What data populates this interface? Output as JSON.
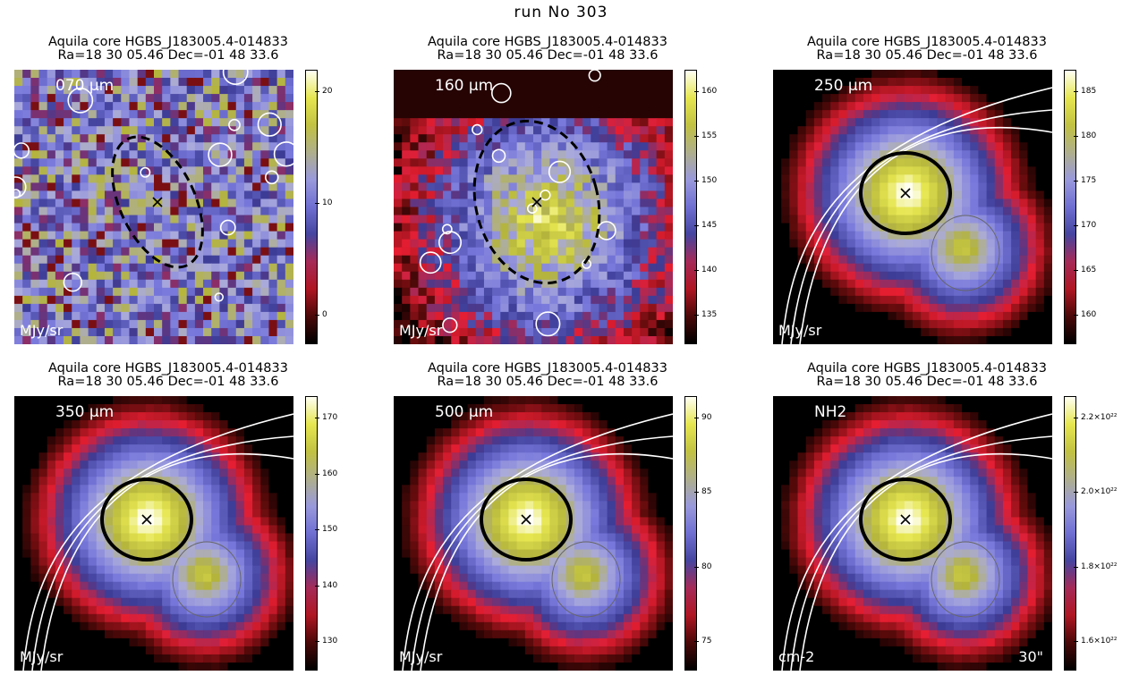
{
  "figure_title": "run No 303",
  "panels": [
    {
      "title_line1": "Aquila core HGBS_J183005.4-014833",
      "title_line2": "Ra=18 30 05.46 Dec=-01 48 33.6",
      "band": "070 μm",
      "unit": "MJy/sr",
      "beam": "",
      "colorbar_ticks": [
        "20",
        "10",
        "0"
      ],
      "style": "noise-ellipse"
    },
    {
      "title_line1": "Aquila core HGBS_J183005.4-014833",
      "title_line2": "Ra=18 30 05.46 Dec=-01 48 33.6",
      "band": "160 μm",
      "unit": "MJy/sr",
      "beam": "",
      "colorbar_ticks": [
        "160",
        "155",
        "150",
        "145",
        "140",
        "135"
      ],
      "style": "patchy-ellipse"
    },
    {
      "title_line1": "Aquila core HGBS_J183005.4-014833",
      "title_line2": "Ra=18 30 05.46 Dec=-01 48 33.6",
      "band": "250 μm",
      "unit": "MJy/sr",
      "beam": "",
      "colorbar_ticks": [
        "185",
        "180",
        "175",
        "170",
        "165",
        "160"
      ],
      "style": "core-circle"
    },
    {
      "title_line1": "Aquila core HGBS_J183005.4-014833",
      "title_line2": "Ra=18 30 05.46 Dec=-01 48 33.6",
      "band": "350 μm",
      "unit": "MJy/sr",
      "beam": "",
      "colorbar_ticks": [
        "170",
        "160",
        "150",
        "140",
        "130"
      ],
      "style": "core-circle"
    },
    {
      "title_line1": "Aquila core HGBS_J183005.4-014833",
      "title_line2": "Ra=18 30 05.46 Dec=-01 48 33.6",
      "band": "500 μm",
      "unit": "MJy/sr",
      "beam": "",
      "colorbar_ticks": [
        "90",
        "85",
        "80",
        "75"
      ],
      "style": "core-circle"
    },
    {
      "title_line1": "Aquila core HGBS_J183005.4-014833",
      "title_line2": "Ra=18 30 05.46 Dec=-01 48 33.6",
      "band": "NH2",
      "unit": "cm-2",
      "beam": "30\"",
      "colorbar_ticks": [
        "2.2×10²²",
        "2.0×10²²",
        "1.8×10²²",
        "1.6×10²²"
      ],
      "style": "core-circle"
    }
  ]
}
